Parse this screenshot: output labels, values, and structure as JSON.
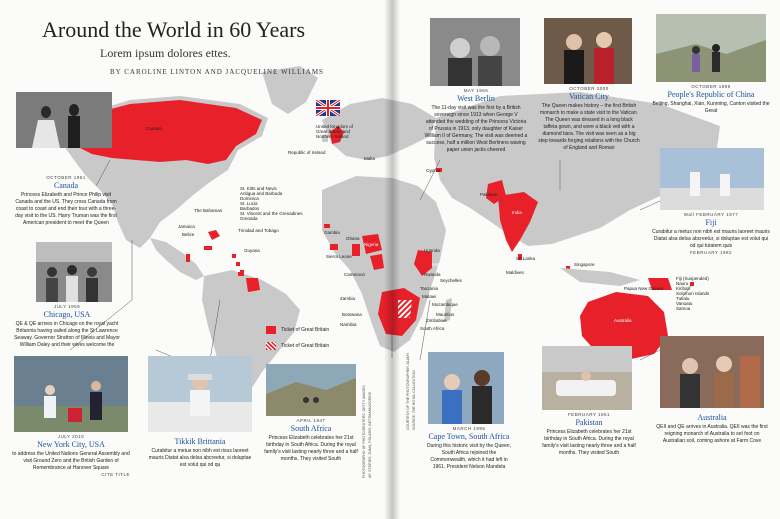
{
  "header": {
    "title": "Around the World in 60 Years",
    "subtitle": "Lorem ipsum dolores ettes.",
    "byline": "BY CAROLINE LINTON AND JACQUELINE WILLIAMS"
  },
  "legend": {
    "solid_label": "Ticket of Great Britain",
    "hatched_label": "Ticket of Great Britain",
    "red": "#e8202a"
  },
  "map_labels": {
    "canada": "Canada",
    "uk": "United Kingdom of Great Britain and Northern Ireland",
    "ireland": "Republic of Ireland",
    "bahamas": "The Bahamas",
    "jamaica": "Jamaica",
    "belize": "Belize",
    "caribbean": "St. Kitts and Nevis\nAntigua and Barbuda\nDominica\nSt. Lucia\nBarbados\nSt. Vincent and the Grenadines\nGrenada",
    "trinidad": "Trinidad and Tobago",
    "guyana": "Guyana",
    "malta": "Malta",
    "cyprus": "Cyprus",
    "gambia": "Gambia",
    "sierra_leone": "Sierra Leone",
    "ghana": "Ghana",
    "nigeria": "Nigeria",
    "cameroon": "Cameroon",
    "uganda": "Uganda",
    "kenya": "Kenya",
    "rwanda": "Rwanda",
    "seychelles": "Seychelles",
    "tanzania": "Tanzania",
    "malawi": "Malawi",
    "zambia": "Zambia",
    "mozambique": "Mozambique",
    "botswana": "Botswana",
    "mauritius": "Mauritius",
    "zimbabwe": "Zimbabwe",
    "namibia": "Namibia",
    "south_africa": "South Africa",
    "pakistan": "Pakistan",
    "india": "India",
    "sri_lanka": "Sri Lanka",
    "maldives": "Maldives",
    "singapore": "Singapore",
    "australia": "Australia",
    "papua": "Papua New Guinea",
    "pacific": "Fiji (Suspended)\nNauru\nKiribati\nSolomon Islands\nTuvalu\nVanuatu\nSamoa"
  },
  "captions": {
    "canada": {
      "date": "OCTOBER 1951",
      "place": "Canada",
      "body": "Princess Elizabeth and Prince Philip visit Canada and the US. They cross Canada from coast to coast and end their tour with a three-day visit to the US. Harry Truman was the first American president to meet the Queen"
    },
    "chicago": {
      "date": "JULY 1959",
      "place": "Chicago, USA",
      "body": "QE & QE arrives in Chicago on the royal yacht Britannia having sailed along the St Lawrence Seaway. Governor Stratton of Illinois and Mayor William Daley and their wives welcome the"
    },
    "nyc": {
      "date": "JULY 2010",
      "place": "New York City, USA",
      "body": "to address the United Nations General Assembly and visit Ground Zero and the British Garden of Remembrance at Hanover Square"
    },
    "nyc_tag": "CITE TITLE",
    "britannia": {
      "date": "",
      "place": "Tikkik Brittania",
      "body": "Curabitur a metus non nibh est risus laoreet mauris Diatat alsa delsa abcreetur, si doluptae est volut qui od qu"
    },
    "south_africa": {
      "date": "APRIL 1947",
      "place": "South Africa",
      "body": "Princess Elizabeth celebrates her 21st birthday in South Africa. During the royal family's visit lasting nearly three and a half months. They visited South"
    },
    "west_berlin": {
      "date": "MAY 1965",
      "place": "West Berlin",
      "body": "The 11-day visit was the first by a British sovereign since 1913 when George V attended the wedding of the Princess Victoria of Prussia in 1913, only daughter of Kaiser William II of Germany. The visit was deemed a success, half a million West Berliners waving paper union jacks cheered"
    },
    "vatican": {
      "date": "OCTOBER 2000",
      "place": "Vatican City",
      "body": "The Queen makes history – the first British monarch to make a state visit to the Vatican. The Queen was dressed in a long black taffeta gown, and wore a black veil with a diamond tiara. The visit was seen as a big step towards forging relations with the Church of England and Roman"
    },
    "china": {
      "date": "OCTOBER 1986",
      "place": "People's Republic of China",
      "body": "Beijing, Shanghai, Xian, Kunming, Canton visited the Great"
    },
    "fiji": {
      "date": "FEBRUARY 1977",
      "place": "Fiji",
      "body": "Curabitur a metus non nibh est mauris laoreet mauris Diatat alsa delsa abcreetur, si doluptae est volut qui od qui tutatem quis",
      "lead": "Wall",
      "tail": "FEBRUARY 1982"
    },
    "cape_town": {
      "date": "MARCH 1995",
      "place": "Cape Town, South Africa",
      "body": "During this historic visit by the Queen, South Africa rejoined the Commonwealth, which it had left in 1961. President Nelson Mandela"
    },
    "pakistan": {
      "date": "FEBRUARY 1961",
      "place": "Pakistan",
      "body": "Princess Elizabeth celebrates her 21st birthday in South Africa. During the royal family's visit lasting nearly three and a half months. They visited South"
    },
    "australia": {
      "date": "",
      "place": "Australia",
      "body": "QEII and QE arrives in Australia. QEII was the first reigning monarch of Australia to set foot on Australian soil, coming ashore at Farm Cove"
    }
  },
  "credits": {
    "left_1": "PHOTOGRAPHS: AP PHOTO/REUTERS, GETTY IMAGES",
    "left_2": "AP, STORIES, ZUMA, POLARIS, BETTMANN/CORBIS",
    "mid_1": "COURTESY OF THE PHOTOGRAPHER, ALAMY",
    "mid_2": "SOURCE: THE ROYAL COLLECTION"
  }
}
